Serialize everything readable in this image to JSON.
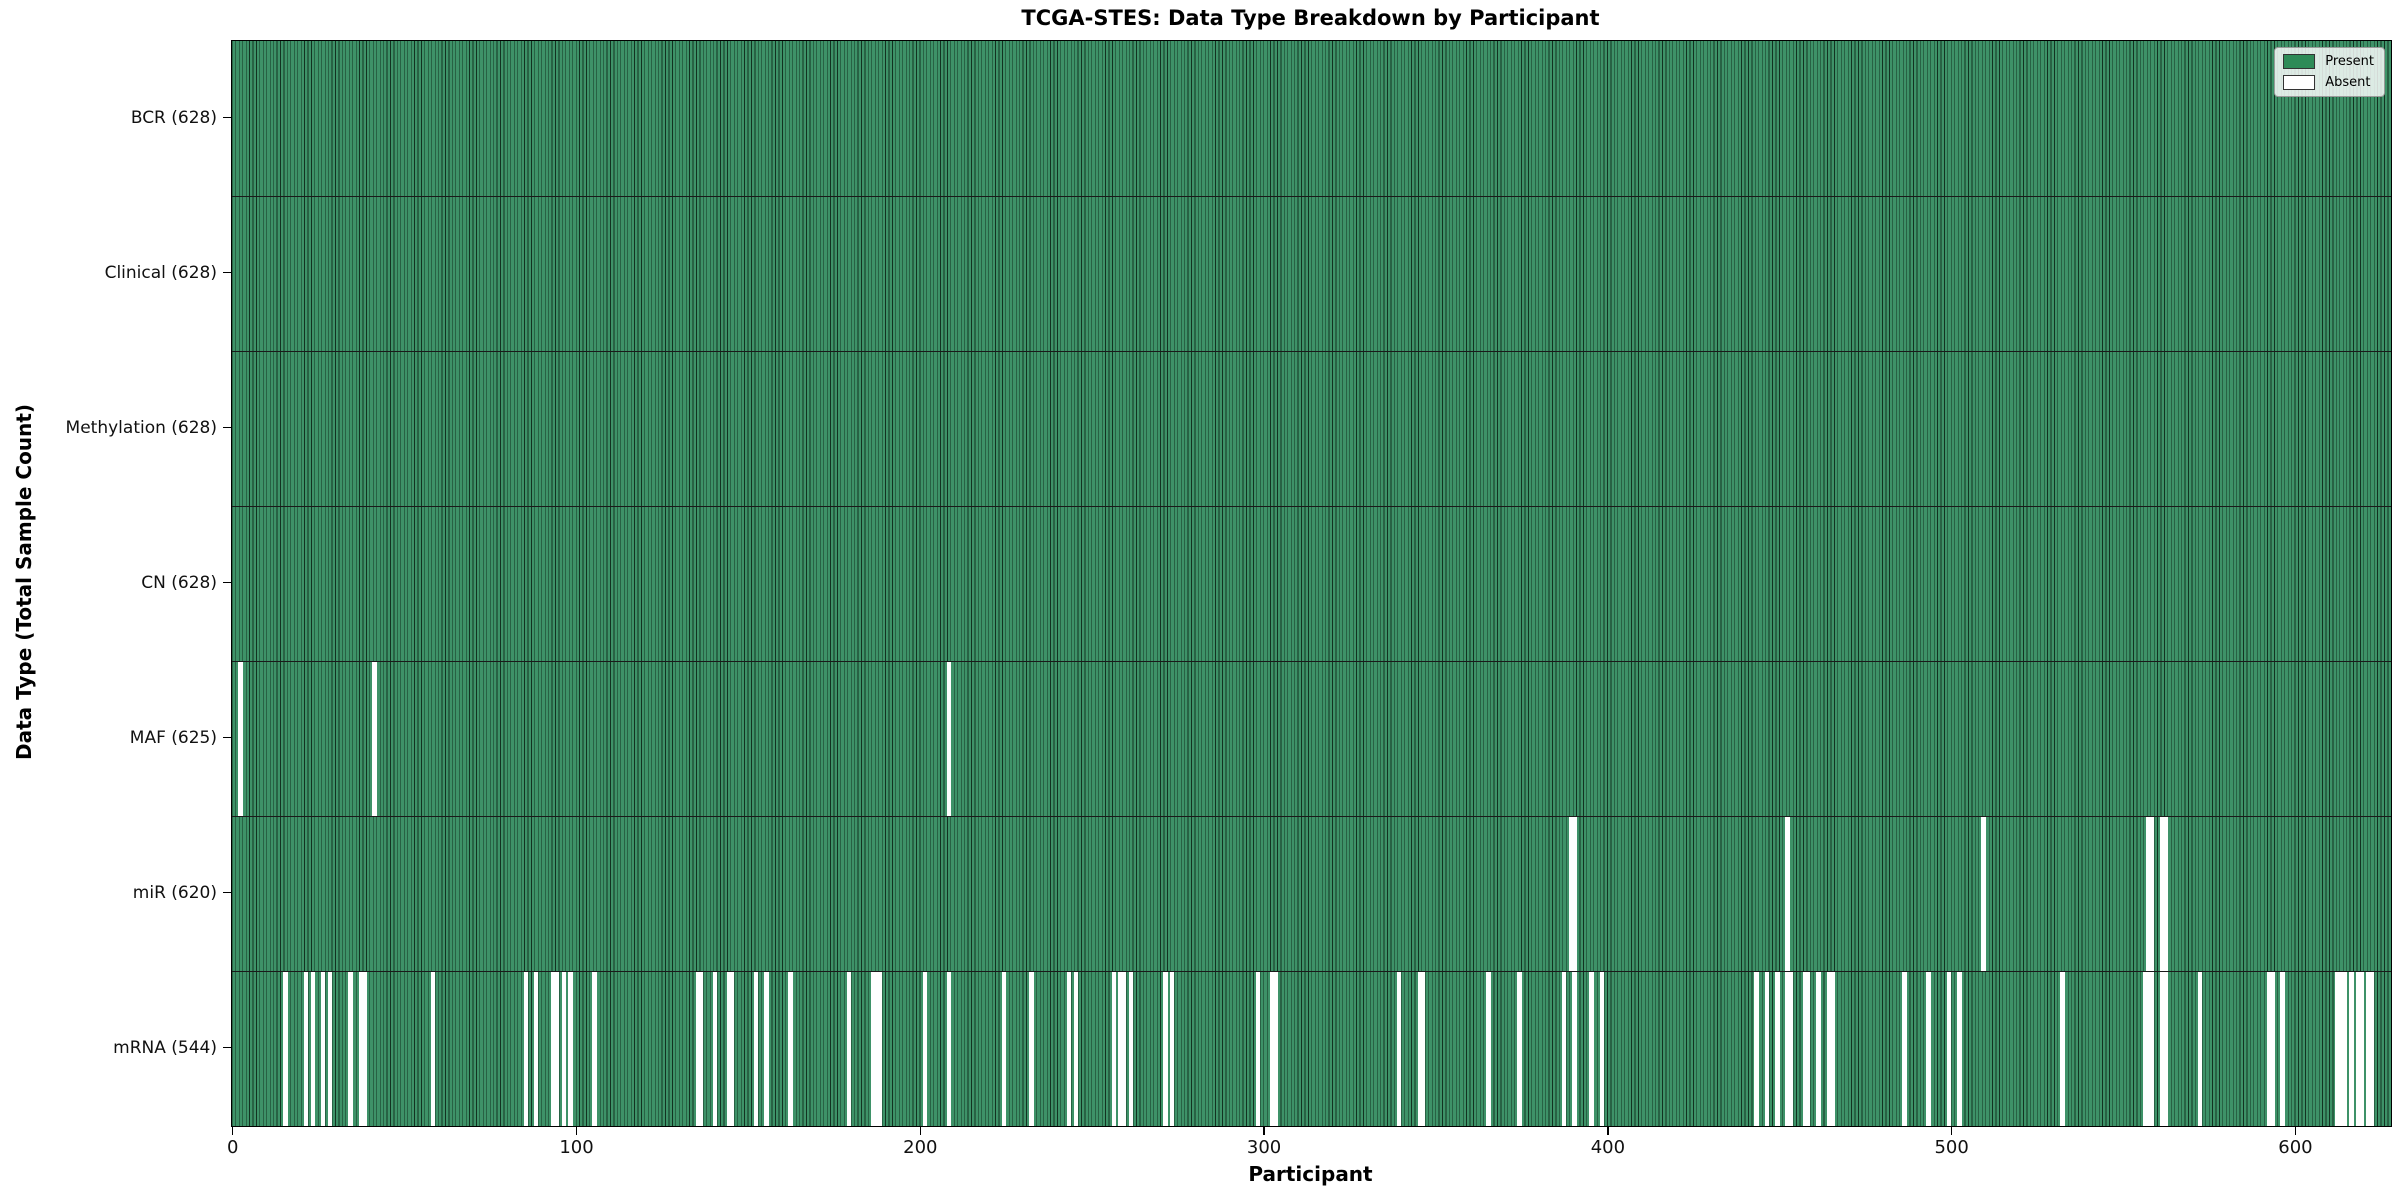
{
  "chart_data": {
    "type": "heatmap",
    "title": "TCGA-STES: Data Type Breakdown by Participant",
    "xlabel": "Participant",
    "ylabel": "Data Type (Total Sample Count)",
    "x_ticks": [
      0,
      100,
      200,
      300,
      400,
      500,
      600
    ],
    "x_range": [
      0,
      628
    ],
    "n_participants": 628,
    "grid": false,
    "legend": {
      "position": "upper-right",
      "items": [
        {
          "label": "Present",
          "color": "#2e8b57"
        },
        {
          "label": "Absent",
          "color": "#ffffff"
        }
      ]
    },
    "rows": [
      {
        "label": "BCR (628)",
        "data_type": "BCR",
        "total": 628,
        "absent_participants": []
      },
      {
        "label": "Clinical (628)",
        "data_type": "Clinical",
        "total": 628,
        "absent_participants": []
      },
      {
        "label": "Methylation (628)",
        "data_type": "Methylation",
        "total": 628,
        "absent_participants": []
      },
      {
        "label": "CN (628)",
        "data_type": "CN",
        "total": 628,
        "absent_participants": []
      },
      {
        "label": "MAF (625)",
        "data_type": "MAF",
        "total": 625,
        "absent_participants": [
          2,
          41,
          208
        ]
      },
      {
        "label": "miR (620)",
        "data_type": "miR",
        "total": 620,
        "absent_participants": [
          389,
          390,
          452,
          509,
          557,
          558,
          561,
          562
        ]
      },
      {
        "label": "mRNA (544)",
        "data_type": "mRNA",
        "total": 544,
        "absent_participants": [
          15,
          21,
          23,
          26,
          28,
          34,
          37,
          38,
          58,
          85,
          88,
          93,
          94,
          96,
          98,
          105,
          135,
          136,
          140,
          144,
          145,
          152,
          155,
          162,
          179,
          186,
          187,
          188,
          201,
          208,
          224,
          232,
          243,
          245,
          256,
          258,
          259,
          261,
          271,
          273,
          298,
          302,
          303,
          339,
          345,
          346,
          365,
          374,
          387,
          390,
          395,
          398,
          443,
          446,
          449,
          452,
          453,
          457,
          458,
          461,
          464,
          465,
          486,
          493,
          499,
          502,
          532,
          556,
          557,
          558,
          561,
          562,
          572,
          592,
          593,
          596,
          612,
          613,
          614,
          616,
          618,
          619,
          621,
          622
        ]
      }
    ],
    "colors": {
      "present": "#2e8b57",
      "absent": "#ffffff",
      "bar_fill": "#3e9268",
      "bar_edge": "#123221",
      "row_separator": "#1a1a1a",
      "frame": "#000000"
    }
  }
}
